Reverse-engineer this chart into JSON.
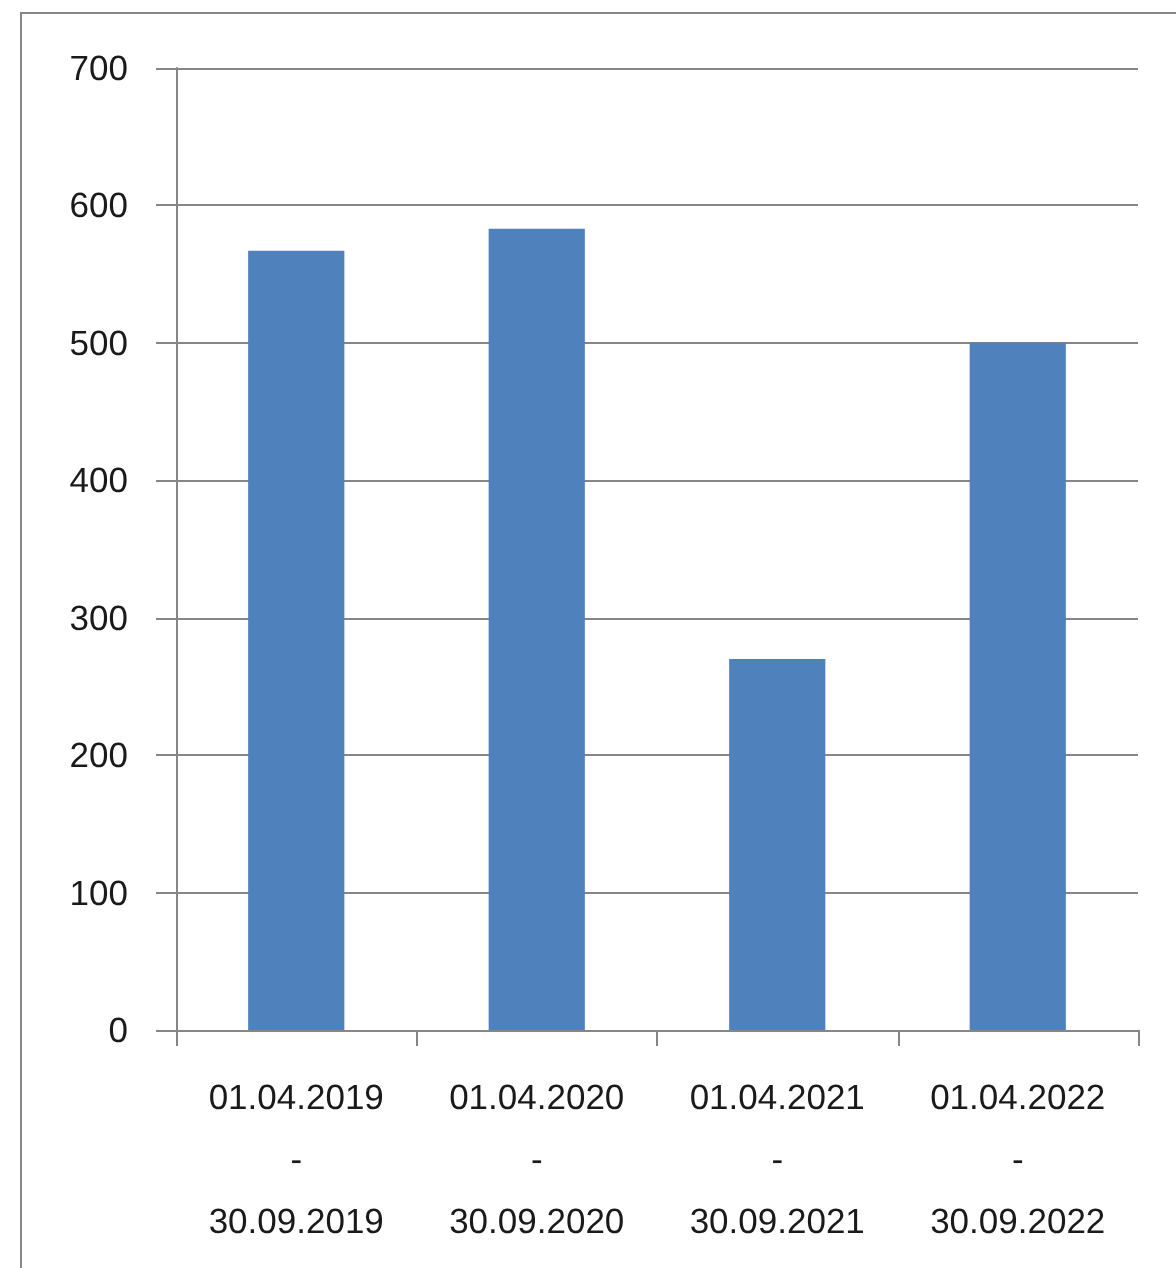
{
  "chart_data": {
    "type": "bar",
    "categories": [
      "01.04.2019 - 30.09.2019",
      "01.04.2020 - 30.09.2020",
      "01.04.2021 - 30.09.2021",
      "01.04.2022 - 30.09.2022"
    ],
    "values": [
      567,
      583,
      270,
      500
    ],
    "color": "#4f81bd",
    "ylim": [
      0,
      700
    ],
    "yticks": [
      0,
      100,
      200,
      300,
      400,
      500,
      600,
      700
    ],
    "grid": "y"
  }
}
